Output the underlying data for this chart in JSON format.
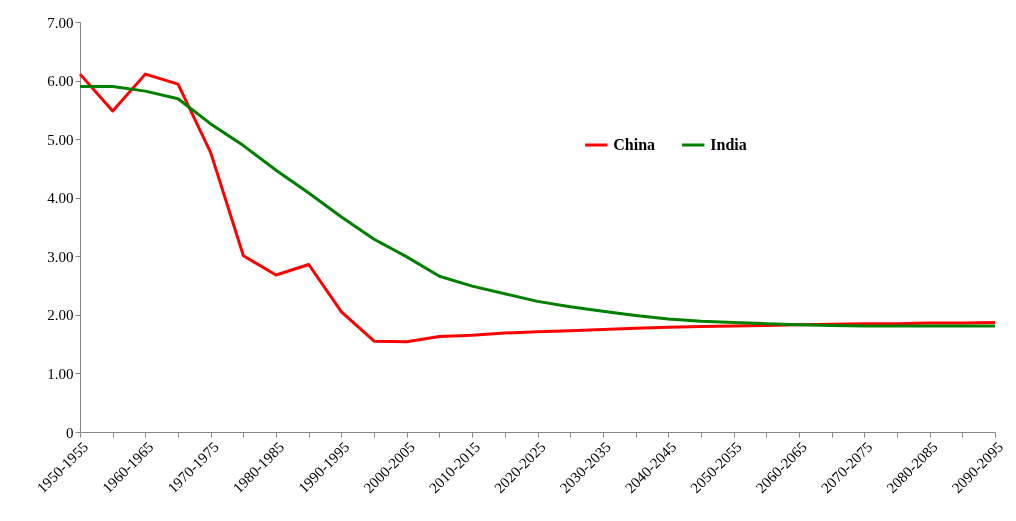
{
  "chart_data": {
    "type": "line",
    "categories": [
      "1950-1955",
      null,
      "1960-1965",
      null,
      "1970-1975",
      null,
      "1980-1985",
      null,
      "1990-1995",
      null,
      "2000-2005",
      null,
      "2010-2015",
      null,
      "2020-2025",
      null,
      "2030-2035",
      null,
      "2040-2045",
      null,
      "2050-2055",
      null,
      "2060-2065",
      null,
      "2070-2075",
      null,
      "2080-2085",
      null,
      "2090-2095"
    ],
    "series": [
      {
        "name": "China",
        "color": "#ff0000",
        "values": [
          6.11,
          5.48,
          6.11,
          5.94,
          4.77,
          3.01,
          2.68,
          2.86,
          2.05,
          1.55,
          1.54,
          1.63,
          1.65,
          1.69,
          1.71,
          1.73,
          1.75,
          1.77,
          1.79,
          1.8,
          1.81,
          1.82,
          1.83,
          1.84,
          1.85,
          1.85,
          1.86,
          1.86,
          1.87
        ]
      },
      {
        "name": "India",
        "color": "#008000",
        "values": [
          5.9,
          5.9,
          5.82,
          5.69,
          5.26,
          4.89,
          4.47,
          4.08,
          3.67,
          3.29,
          2.99,
          2.66,
          2.49,
          2.36,
          2.23,
          2.14,
          2.06,
          1.99,
          1.93,
          1.89,
          1.87,
          1.85,
          1.83,
          1.82,
          1.81,
          1.81,
          1.81,
          1.81,
          1.81
        ]
      }
    ],
    "ylim": [
      0,
      7
    ],
    "yticks": [
      0,
      {
        "value": 1,
        "label": "1.00"
      },
      {
        "value": 2,
        "label": "2.00"
      },
      {
        "value": 3,
        "label": "3.00"
      },
      {
        "value": 4,
        "label": "4.00"
      },
      {
        "value": 5,
        "label": "5.00"
      },
      {
        "value": 6,
        "label": "6.00"
      },
      {
        "value": 7,
        "label": "7.00"
      }
    ],
    "grid": false,
    "legend": "top right",
    "marker": "none",
    "line_style": "solid"
  }
}
